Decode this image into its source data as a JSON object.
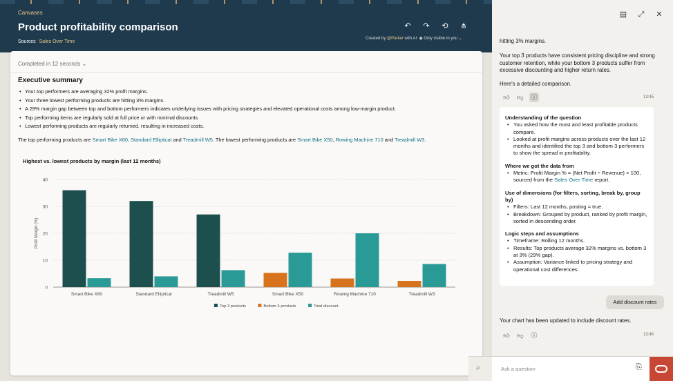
{
  "header": {
    "breadcrumb": "Canvases",
    "title": "Product profitability comparison",
    "sources_label": "Sources",
    "sources_link": "Sales Over Time",
    "created_prefix": "Created by",
    "created_user": "@Parker",
    "created_suffix": "with AI",
    "visibility": "Only visible to you"
  },
  "card": {
    "completed": "Completed in 12 seconds",
    "exec_title": "Executive summary",
    "bullets": [
      "Your top performers are averaging 32% profit margins.",
      "Your three lowest performing products are hitting 3% margins.",
      "A 29% margin gap between top and bottom performers indicates underlying issues with pricing strategies and elevated operational costs among low-margin product.",
      "Top performing items are regularly sold at full price or with minimal discounts",
      "Lowest performing products are regularly returned, resulting in increased costs."
    ],
    "perf": {
      "p1": "The top performing products are",
      "l1": "Smart Bike X60",
      "s1": ",",
      "l2": "Standard Elliptical",
      "s2": "and",
      "l3": "Treadmill W5",
      "p2": ". The lowest performing products are",
      "l4": "Smart Bike X50",
      "s3": ",",
      "l5": "Rowing Machine 710",
      "s4": "and",
      "l6": "Treadmill W3",
      "p3": "."
    }
  },
  "chart_data": {
    "type": "bar",
    "title": "Highest vs. lowest products by margin (last 12 months)",
    "xlabel": "",
    "ylabel": "Profit Margin (%)",
    "ylim": [
      0,
      40
    ],
    "yticks": [
      0,
      10,
      20,
      30,
      40
    ],
    "grid": true,
    "legend": "bottom",
    "categories": [
      "Smart Bike X60",
      "Standard Elliptical",
      "Treadmill W5",
      "Smart Bike X50",
      "Rowing Machine 710",
      "Treadmill W3"
    ],
    "series": [
      {
        "name": "Top 3 products",
        "color": "#1d4f4f",
        "values": [
          36,
          32,
          27,
          null,
          null,
          null
        ]
      },
      {
        "name": "Bottom 3 products",
        "color": "#d6731c",
        "values": [
          null,
          null,
          null,
          5.3,
          3.2,
          2.3
        ]
      },
      {
        "name": "Total discount",
        "color": "#2a9a96",
        "values": [
          3.3,
          4,
          6.3,
          12.8,
          20,
          8.6
        ]
      }
    ]
  },
  "panel": {
    "top_partial": "hitting 3% margins.",
    "para1": "Your top 3 products have consistent pricing discipline and strong customer retention, while your bottom 3 products suffer from excessive discounting and higher return rates.",
    "para2": "Here's a detailed comparison.",
    "time1": "13:45",
    "sections": {
      "s1_title": "Understanding of the question",
      "s1_b1": "You asked how the most and least profitable products compare.",
      "s1_b2": "Looked at profit margins across products over the last 12 months and identified the top 3 and bottom 3 performers to show the spread in profitability.",
      "s2_title": "Where we got the data from",
      "s2_b1_pre": "Metric: Profit Margin % = (Net Profit ÷ Revenue) × 100, sourced from the",
      "s2_b1_link": "Sales Over Time",
      "s2_b1_post": "report.",
      "s3_title": "Use of dimensions (for filters, sorting, break by, group by)",
      "s3_b1": "Filters: Last 12 months, posting = true.",
      "s3_b2": "Breakdown: Grouped by product, ranked by profit margin, sorted in descending order.",
      "s4_title": "Logic steps and assumptions",
      "s4_b1": "Timeframe: Rolling 12 months.",
      "s4_b2": "Results: Top products average 32% margins vs. bottom 3 at 3% (29% gap).",
      "s4_b3": "Assumption: Variance linked to pricing strategy and operational cost differences."
    },
    "add_button": "Add discount rates",
    "updated_msg": "Your chart has been updated to include discount rates.",
    "time2": "13:46",
    "ask_placeholder": "Ask a question"
  },
  "icons": {
    "undo": "undo-icon",
    "redo": "redo-icon",
    "history": "history-icon",
    "share": "share-icon",
    "notes": "notes-icon",
    "expand": "expand-icon",
    "close": "close-icon",
    "search": "search-icon",
    "attach": "paperclip-icon",
    "assistant": "oracle-logo-icon"
  }
}
